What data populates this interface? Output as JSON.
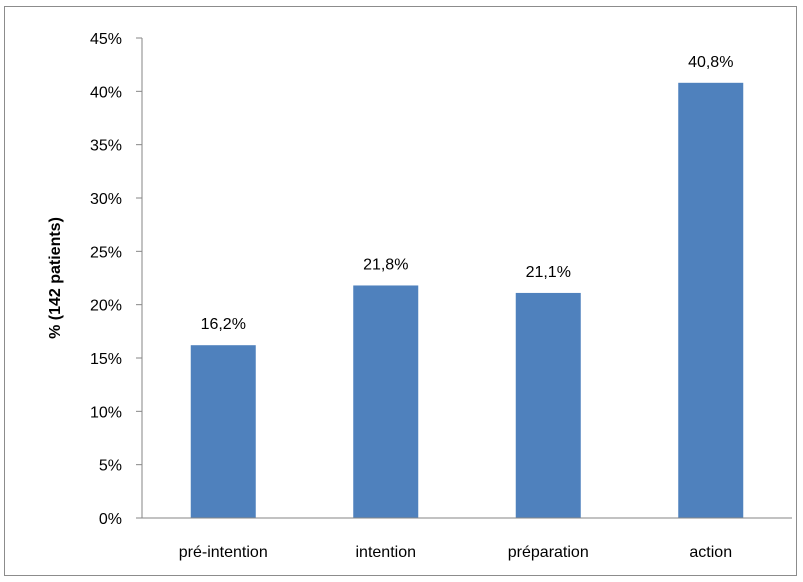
{
  "chart_data": {
    "type": "bar",
    "categories": [
      "pré-intention",
      "intention",
      "préparation",
      "action"
    ],
    "values": [
      16.2,
      21.8,
      21.1,
      40.8
    ],
    "data_labels": [
      "16,2%",
      "21,8%",
      "21,1%",
      "40,8%"
    ],
    "title": "",
    "xlabel": "",
    "ylabel": "% (142 patients)",
    "ylim": [
      0,
      45
    ],
    "yticks": [
      0,
      5,
      10,
      15,
      20,
      25,
      30,
      35,
      40,
      45
    ],
    "ytick_labels": [
      "0%",
      "5%",
      "10%",
      "15%",
      "20%",
      "25%",
      "30%",
      "35%",
      "40%",
      "45%"
    ],
    "grid": false,
    "legend": "none",
    "bar_color": "#4F81BD"
  }
}
